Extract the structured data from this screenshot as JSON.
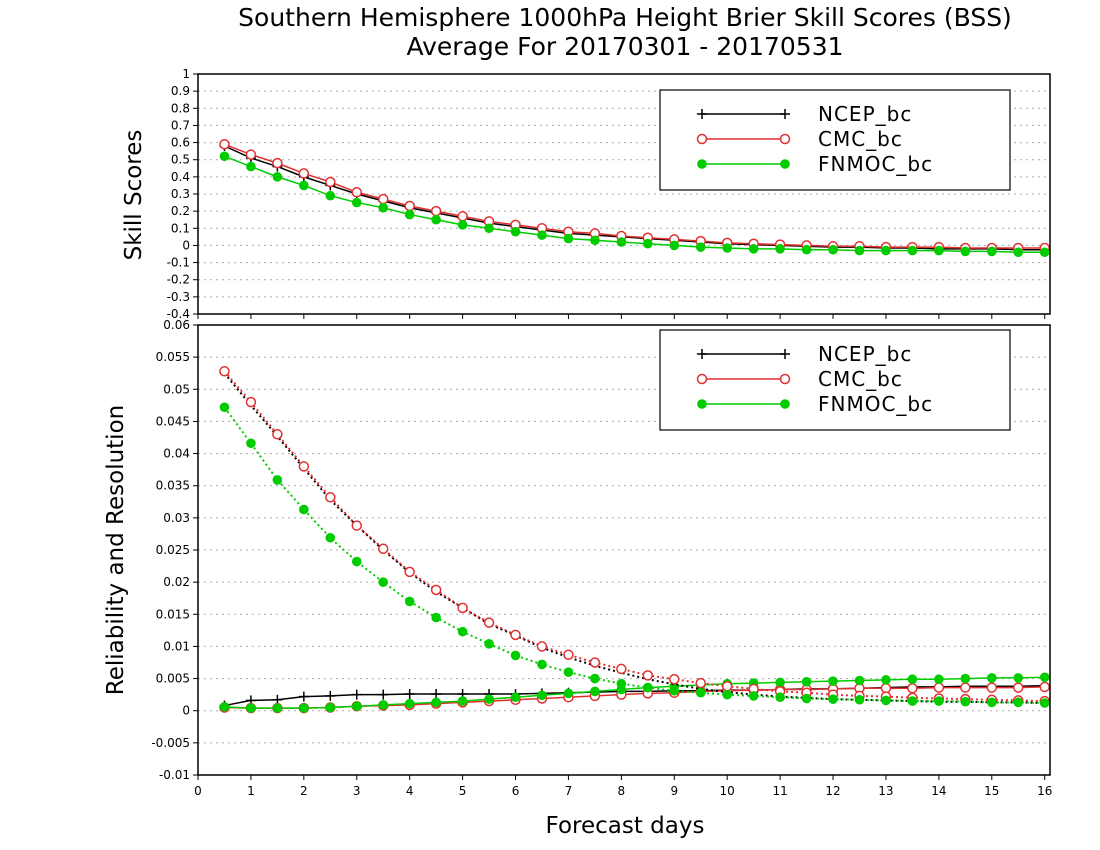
{
  "chart_data": [
    {
      "type": "line",
      "title": "Southern Hemisphere 1000hPa Height Brier Skill Scores (BSS)",
      "subtitle": "Average For 20170301 - 20170531",
      "ylabel": "Skill Scores",
      "xlabel": "",
      "xlim": [
        0,
        16.1
      ],
      "ylim": [
        -0.4,
        1
      ],
      "yticks": [
        "-0.4",
        "-0.3",
        "-0.2",
        "-0.1",
        "0",
        "0.1",
        "0.2",
        "0.3",
        "0.4",
        "0.5",
        "0.6",
        "0.7",
        "0.8",
        "0.9",
        "1"
      ],
      "ytick_values": [
        -0.4,
        -0.3,
        -0.2,
        -0.1,
        0,
        0.1,
        0.2,
        0.3,
        0.4,
        0.5,
        0.6,
        0.7,
        0.8,
        0.9,
        1
      ],
      "grid": true,
      "legend_position": "top-right",
      "x": [
        0.5,
        1,
        1.5,
        2,
        2.5,
        3,
        3.5,
        4,
        4.5,
        5,
        5.5,
        6,
        6.5,
        7,
        7.5,
        8,
        8.5,
        9,
        9.5,
        10,
        10.5,
        11,
        11.5,
        12,
        12.5,
        13,
        13.5,
        14,
        14.5,
        15,
        15.5,
        16
      ],
      "series": [
        {
          "name": "NCEP_bc",
          "color": "#000000",
          "marker": "plus",
          "values": [
            0.58,
            0.51,
            0.46,
            0.4,
            0.35,
            0.3,
            0.26,
            0.22,
            0.19,
            0.16,
            0.13,
            0.11,
            0.09,
            0.07,
            0.06,
            0.05,
            0.04,
            0.03,
            0.02,
            0.01,
            0.005,
            0.0,
            -0.005,
            -0.01,
            -0.01,
            -0.015,
            -0.015,
            -0.02,
            -0.02,
            -0.02,
            -0.025,
            -0.025
          ]
        },
        {
          "name": "CMC_bc",
          "color": "#e03030",
          "marker": "circle-open",
          "values": [
            0.59,
            0.53,
            0.48,
            0.42,
            0.37,
            0.31,
            0.27,
            0.23,
            0.2,
            0.17,
            0.14,
            0.12,
            0.1,
            0.08,
            0.07,
            0.055,
            0.045,
            0.035,
            0.025,
            0.015,
            0.01,
            0.005,
            0.0,
            -0.005,
            -0.005,
            -0.01,
            -0.01,
            -0.01,
            -0.015,
            -0.015,
            -0.015,
            -0.015
          ]
        },
        {
          "name": "FNMOC_bc",
          "color": "#00cc00",
          "marker": "circle-filled",
          "values": [
            0.52,
            0.46,
            0.4,
            0.35,
            0.29,
            0.25,
            0.22,
            0.18,
            0.15,
            0.12,
            0.1,
            0.08,
            0.06,
            0.04,
            0.03,
            0.02,
            0.01,
            0.0,
            -0.01,
            -0.015,
            -0.02,
            -0.02,
            -0.025,
            -0.025,
            -0.03,
            -0.03,
            -0.03,
            -0.03,
            -0.035,
            -0.035,
            -0.04,
            -0.04
          ]
        }
      ]
    },
    {
      "type": "line",
      "title": "",
      "ylabel": "Reliability and Resolution",
      "xlabel": "Forecast days",
      "xlim": [
        0,
        16.1
      ],
      "ylim": [
        -0.01,
        0.06
      ],
      "xticks": [
        "0",
        "1",
        "2",
        "3",
        "4",
        "5",
        "6",
        "7",
        "8",
        "9",
        "10",
        "11",
        "12",
        "13",
        "14",
        "15",
        "16"
      ],
      "xtick_values": [
        0,
        1,
        2,
        3,
        4,
        5,
        6,
        7,
        8,
        9,
        10,
        11,
        12,
        13,
        14,
        15,
        16
      ],
      "yticks": [
        "-0.01",
        "-0.005",
        "0",
        "0.005",
        "0.01",
        "0.015",
        "0.02",
        "0.025",
        "0.03",
        "0.035",
        "0.04",
        "0.045",
        "0.05",
        "0.055",
        "0.06"
      ],
      "ytick_values": [
        -0.01,
        -0.005,
        0,
        0.005,
        0.01,
        0.015,
        0.02,
        0.025,
        0.03,
        0.035,
        0.04,
        0.045,
        0.05,
        0.055,
        0.06
      ],
      "grid": true,
      "legend_position": "top-right",
      "x": [
        0.5,
        1,
        1.5,
        2,
        2.5,
        3,
        3.5,
        4,
        4.5,
        5,
        5.5,
        6,
        6.5,
        7,
        7.5,
        8,
        8.5,
        9,
        9.5,
        10,
        10.5,
        11,
        11.5,
        12,
        12.5,
        13,
        13.5,
        14,
        14.5,
        15,
        15.5,
        16
      ],
      "series": [
        {
          "name": "NCEP_bc",
          "color": "#000000",
          "marker": "plus",
          "line": "solid",
          "values": [
            0.0008,
            0.0016,
            0.0017,
            0.0022,
            0.0023,
            0.0025,
            0.0025,
            0.0026,
            0.0026,
            0.0026,
            0.0026,
            0.0026,
            0.0027,
            0.0028,
            0.0029,
            0.003,
            0.003,
            0.0031,
            0.0031,
            0.0032,
            0.0032,
            0.0033,
            0.0034,
            0.0034,
            0.0035,
            0.0036,
            0.0037,
            0.0037,
            0.0038,
            0.0038,
            0.0038,
            0.0039
          ]
        },
        {
          "name": "CMC_bc",
          "color": "#e03030",
          "marker": "circle-open",
          "line": "solid",
          "values": [
            0.0005,
            0.0004,
            0.0004,
            0.0004,
            0.0005,
            0.0007,
            0.0008,
            0.0009,
            0.0011,
            0.0013,
            0.0015,
            0.0017,
            0.0019,
            0.0021,
            0.0023,
            0.0025,
            0.0027,
            0.0028,
            0.003,
            0.0031,
            0.0032,
            0.0033,
            0.0033,
            0.0034,
            0.0035,
            0.0035,
            0.0035,
            0.0036,
            0.0036,
            0.0036,
            0.0036,
            0.0037
          ]
        },
        {
          "name": "FNMOC_bc",
          "color": "#00cc00",
          "marker": "circle-filled",
          "line": "solid",
          "values": [
            0.0006,
            0.0004,
            0.0004,
            0.0004,
            0.0005,
            0.0007,
            0.0009,
            0.0011,
            0.0013,
            0.0015,
            0.0018,
            0.0021,
            0.0024,
            0.0027,
            0.003,
            0.0033,
            0.0036,
            0.0038,
            0.004,
            0.0042,
            0.0043,
            0.0044,
            0.0045,
            0.0046,
            0.0047,
            0.0048,
            0.0049,
            0.0049,
            0.005,
            0.0051,
            0.0051,
            0.0052
          ]
        },
        {
          "name": "",
          "color": "#000000",
          "marker": "none",
          "line": "dotted",
          "values": [
            0.0525,
            0.0475,
            0.0427,
            0.0377,
            0.0328,
            0.0288,
            0.025,
            0.0215,
            0.0185,
            0.016,
            0.0135,
            0.0117,
            0.0098,
            0.0083,
            0.007,
            0.0059,
            0.0049,
            0.0041,
            0.0034,
            0.0029,
            0.0025,
            0.0022,
            0.002,
            0.0018,
            0.0017,
            0.0016,
            0.0015,
            0.0014,
            0.0014,
            0.0013,
            0.0013,
            0.0012
          ]
        },
        {
          "name": "",
          "color": "#e03030",
          "marker": "circle-open",
          "line": "dotted",
          "values": [
            0.0528,
            0.048,
            0.043,
            0.038,
            0.0332,
            0.0288,
            0.0252,
            0.0216,
            0.0188,
            0.016,
            0.0137,
            0.0118,
            0.01,
            0.0087,
            0.0075,
            0.0065,
            0.0055,
            0.0049,
            0.0043,
            0.0038,
            0.0034,
            0.003,
            0.0028,
            0.0025,
            0.0023,
            0.0022,
            0.002,
            0.0019,
            0.0018,
            0.0017,
            0.0016,
            0.0015
          ]
        },
        {
          "name": "",
          "color": "#00cc00",
          "marker": "circle-filled",
          "line": "dotted",
          "values": [
            0.0472,
            0.0416,
            0.0359,
            0.0313,
            0.0269,
            0.0232,
            0.02,
            0.017,
            0.0145,
            0.0123,
            0.0104,
            0.0086,
            0.0072,
            0.006,
            0.005,
            0.0042,
            0.0036,
            0.0031,
            0.0028,
            0.0025,
            0.0023,
            0.0021,
            0.0019,
            0.0018,
            0.0017,
            0.0016,
            0.0015,
            0.0015,
            0.0014,
            0.0013,
            0.0013,
            0.0012
          ]
        }
      ]
    }
  ]
}
